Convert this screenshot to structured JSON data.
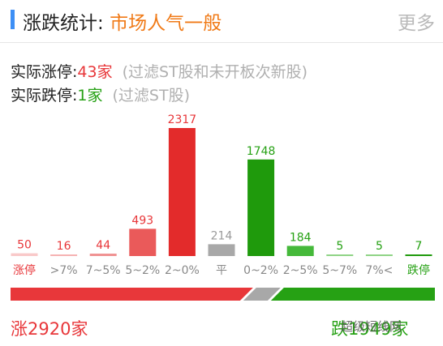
{
  "header": {
    "title_prefix": "涨跌统计:",
    "title_mood": "市场人气一般",
    "more_label": "更多"
  },
  "stats": {
    "limit_up_label": "实际涨停:",
    "limit_up_value": "43家",
    "limit_up_note": "(过滤ST股和未开板次新股)",
    "limit_down_label": "实际跌停:",
    "limit_down_value": "1家",
    "limit_down_note": "(过滤ST股)"
  },
  "chart_data": {
    "type": "bar",
    "categories": [
      "涨停",
      ">7%",
      "7~5%",
      "5~2%",
      "2~0%",
      "平",
      "0~2%",
      "2~5%",
      "5~7%",
      "7%<",
      "跌停"
    ],
    "values": [
      50,
      16,
      44,
      493,
      2317,
      214,
      1748,
      184,
      5,
      5,
      7
    ],
    "colors": [
      "#f9c9c9",
      "#f6b3b3",
      "#f09393",
      "#ea5a5a",
      "#e32b2b",
      "#a8a8a8",
      "#1f9a0c",
      "#45b93a",
      "#8fd486",
      "#8fd486",
      "#1f9a0c"
    ],
    "label_colors": [
      "#e8373a",
      "#e8373a",
      "#e8373a",
      "#e8373a",
      "#e8373a",
      "#9a9a9a",
      "#26a114",
      "#26a114",
      "#26a114",
      "#26a114",
      "#26a114"
    ],
    "category_colors": [
      "#e8373a",
      "#888888",
      "#888888",
      "#888888",
      "#888888",
      "#888888",
      "#888888",
      "#888888",
      "#888888",
      "#888888",
      "#26a114"
    ],
    "up_down_ratio": {
      "up": 2920,
      "flat": 214,
      "down": 1949
    }
  },
  "footer": {
    "up_text": "涨2920家",
    "down_text": "跌1949家",
    "watermark": "超级短线网"
  },
  "colors": {
    "red": "#e8373a",
    "green": "#26a114",
    "gray": "#a8a8a8",
    "accent": "#3d8ff5",
    "mood": "#f07a17"
  }
}
